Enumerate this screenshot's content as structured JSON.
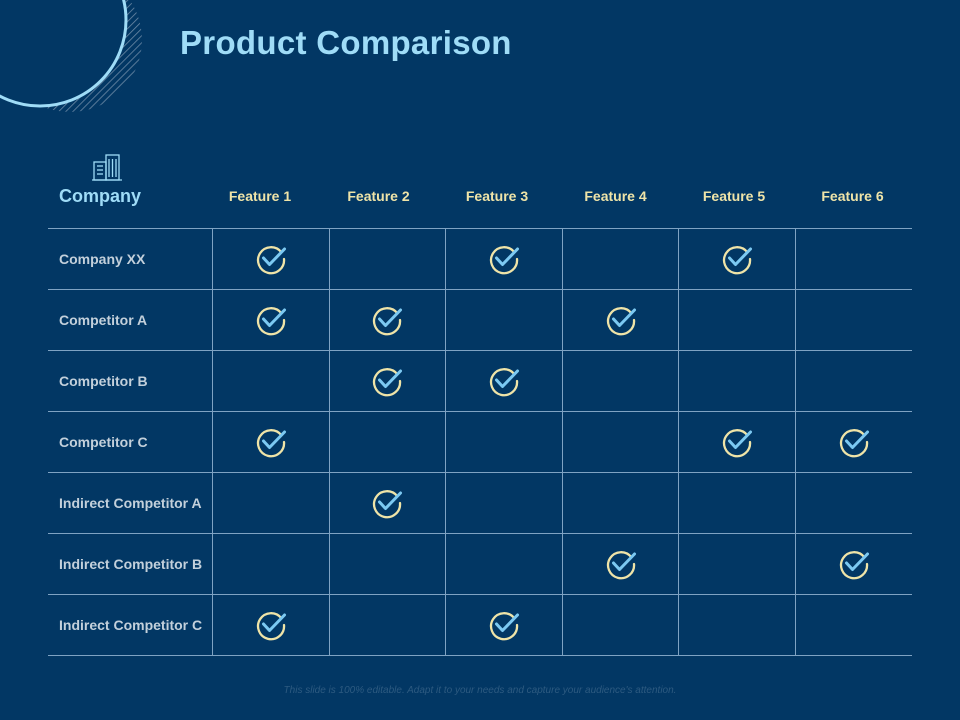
{
  "slide": {
    "title": "Product Comparison",
    "footer": "This slide is 100% editable. Adapt it to your needs and capture your audience's attention."
  },
  "table": {
    "header_label": "Company",
    "header_icon": "building-icon",
    "features": [
      "Feature 1",
      "Feature 2",
      "Feature 3",
      "Feature 4",
      "Feature 5",
      "Feature 6"
    ],
    "rows": [
      {
        "name": "Company XX",
        "checks": [
          true,
          false,
          true,
          false,
          true,
          false
        ]
      },
      {
        "name": "Competitor A",
        "checks": [
          true,
          true,
          false,
          true,
          false,
          false
        ]
      },
      {
        "name": "Competitor B",
        "checks": [
          false,
          true,
          true,
          false,
          false,
          false
        ]
      },
      {
        "name": "Competitor C",
        "checks": [
          true,
          false,
          false,
          false,
          true,
          true
        ]
      },
      {
        "name": "Indirect Competitor A",
        "checks": [
          false,
          true,
          false,
          false,
          false,
          false
        ]
      },
      {
        "name": "Indirect Competitor B",
        "checks": [
          false,
          false,
          false,
          true,
          false,
          true
        ]
      },
      {
        "name": "Indirect Competitor C",
        "checks": [
          true,
          false,
          true,
          false,
          false,
          false
        ]
      }
    ]
  },
  "colors": {
    "background": "#023764",
    "title": "#9fdcf7",
    "feature_header": "#efe4a8",
    "grid_line": "#7fa3c3",
    "check_circle": "#efe4a8",
    "check_tick": "#7cc9f2"
  }
}
